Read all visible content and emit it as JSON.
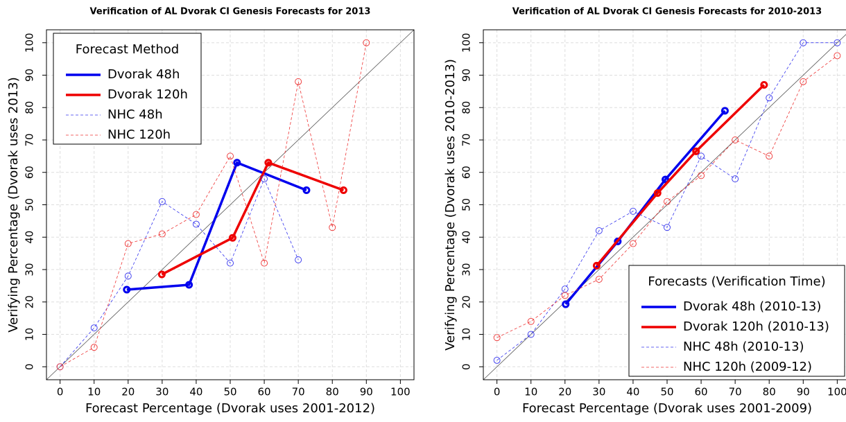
{
  "chart_data": [
    {
      "type": "line",
      "title": "Verification of AL Dvorak CI Genesis Forecasts for 2013",
      "xlabel": "Forecast Percentage (Dvorak uses 2001-2012)",
      "ylabel": "Verifying Percentage (Dvorak uses 2013)",
      "xlim": [
        -4,
        104
      ],
      "ylim": [
        -4,
        104
      ],
      "xticks": [
        0,
        10,
        20,
        30,
        40,
        50,
        60,
        70,
        80,
        90,
        100
      ],
      "yticks": [
        0,
        10,
        20,
        30,
        40,
        50,
        60,
        70,
        80,
        90,
        100
      ],
      "grid": true,
      "legend_title": "Forecast Method",
      "legend_position": "top-left",
      "series": [
        {
          "name": "Dvorak 48h",
          "color": "#0000ee",
          "line_style": "solid",
          "line_width": 3.5,
          "x": [
            19.6,
            37.9,
            52,
            72.4
          ],
          "values": [
            23.8,
            25.3,
            63,
            54.5
          ]
        },
        {
          "name": "Dvorak 120h",
          "color": "#ee0000",
          "line_style": "solid",
          "line_width": 3.5,
          "x": [
            29.9,
            50.7,
            61.2,
            83.3
          ],
          "values": [
            28.5,
            39.8,
            63,
            54.5
          ]
        },
        {
          "name": "NHC 48h",
          "color": "#3333ee",
          "line_style": "dashed",
          "line_width": 0.8,
          "x": [
            0,
            10,
            20,
            30,
            40,
            50,
            60,
            70
          ],
          "values": [
            0,
            12,
            28,
            51,
            44,
            32,
            58,
            33
          ]
        },
        {
          "name": "NHC 120h",
          "color": "#ee3333",
          "line_style": "dashed",
          "line_width": 0.8,
          "x": [
            0,
            10,
            20,
            30,
            40,
            50,
            60,
            70,
            80,
            90
          ],
          "values": [
            0,
            6,
            38,
            41,
            47,
            65,
            32,
            88,
            43,
            100
          ]
        }
      ]
    },
    {
      "type": "line",
      "title": "Verification of AL Dvorak CI Genesis Forecasts for 2010-2013",
      "xlabel": "Forecast Percentage (Dvorak uses 2001-2009)",
      "ylabel": "Verifying Percentage (Dvorak uses 2010-2013)",
      "xlim": [
        -4,
        104
      ],
      "ylim": [
        -4,
        104
      ],
      "xticks": [
        0,
        10,
        20,
        30,
        40,
        50,
        60,
        70,
        80,
        90,
        100
      ],
      "yticks": [
        0,
        10,
        20,
        30,
        40,
        50,
        60,
        70,
        80,
        90,
        100
      ],
      "grid": true,
      "legend_title": "Forecasts (Verification Time)",
      "legend_position": "bottom-right",
      "series": [
        {
          "name": "Dvorak 48h (2010-13)",
          "color": "#0000ee",
          "line_style": "solid",
          "line_width": 3.5,
          "x": [
            20.2,
            35.5,
            49.5,
            67
          ],
          "values": [
            19.3,
            38.7,
            57.8,
            79
          ]
        },
        {
          "name": "Dvorak 120h (2010-13)",
          "color": "#ee0000",
          "line_style": "solid",
          "line_width": 3.5,
          "x": [
            29.3,
            47.2,
            58.5,
            78.5
          ],
          "values": [
            31.2,
            53.6,
            66.5,
            87
          ]
        },
        {
          "name": "NHC 48h (2010-13)",
          "color": "#3333ee",
          "line_style": "dashed",
          "line_width": 0.8,
          "x": [
            0,
            10,
            20,
            30,
            40,
            50,
            60,
            70,
            80,
            90,
            100
          ],
          "values": [
            2,
            10,
            24,
            42,
            48,
            43,
            65,
            58,
            83,
            100,
            100
          ]
        },
        {
          "name": "NHC 120h (2009-12)",
          "color": "#ee3333",
          "line_style": "dashed",
          "line_width": 0.8,
          "x": [
            0,
            10,
            20,
            30,
            40,
            50,
            60,
            70,
            80,
            90,
            100
          ],
          "values": [
            9,
            14,
            22,
            27,
            38,
            51,
            59,
            70,
            65,
            88,
            96
          ]
        }
      ]
    }
  ]
}
